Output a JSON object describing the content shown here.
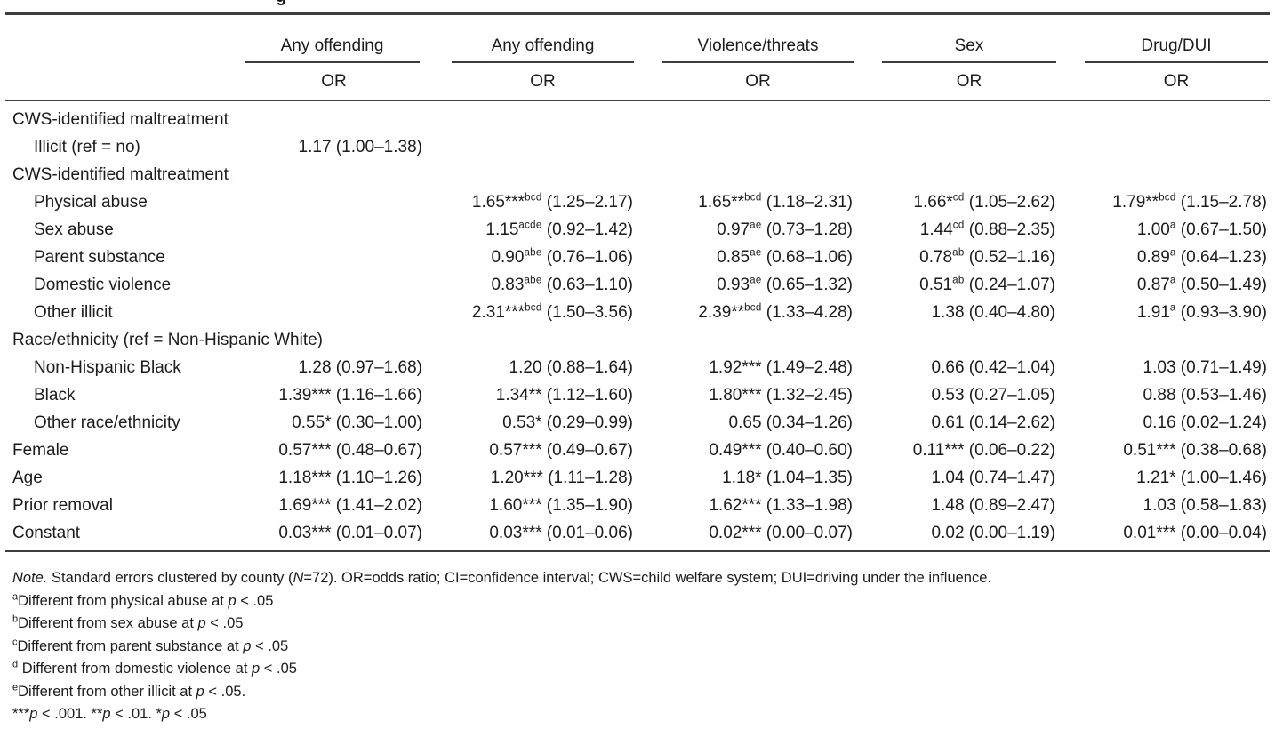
{
  "page": {
    "clipped_title_fragment": "g"
  },
  "colors": {
    "text": "#1c1c1c",
    "rule": "#3d3d3d",
    "background": "#ffffff"
  },
  "table": {
    "column_groups": [
      {
        "label": "Any offending",
        "sub": "OR"
      },
      {
        "label": "Any offending",
        "sub": "OR"
      },
      {
        "label": "Violence/threats",
        "sub": "OR"
      },
      {
        "label": "Sex",
        "sub": "OR"
      },
      {
        "label": "Drug/DUI",
        "sub": "OR"
      }
    ],
    "rows": [
      {
        "label": "CWS-identified maltreatment",
        "indent": 0,
        "cells": [
          null,
          null,
          null,
          null,
          null
        ]
      },
      {
        "label": "Illicit (ref = no)",
        "indent": 1,
        "cells": [
          {
            "or": "1.17",
            "stars": "",
            "sup": "",
            "ci": "(1.00–1.38)"
          },
          null,
          null,
          null,
          null
        ]
      },
      {
        "label": "CWS-identified maltreatment",
        "indent": 0,
        "cells": [
          null,
          null,
          null,
          null,
          null
        ]
      },
      {
        "label": "Physical abuse",
        "indent": 1,
        "cells": [
          null,
          {
            "or": "1.65",
            "stars": "***",
            "sup": "bcd",
            "ci": "(1.25–2.17)"
          },
          {
            "or": "1.65",
            "stars": "**",
            "sup": "bcd",
            "ci": "(1.18–2.31)"
          },
          {
            "or": "1.66",
            "stars": "*",
            "sup": "cd",
            "ci": "(1.05–2.62)"
          },
          {
            "or": "1.79",
            "stars": "**",
            "sup": "bcd",
            "ci": "(1.15–2.78)"
          }
        ]
      },
      {
        "label": "Sex abuse",
        "indent": 1,
        "cells": [
          null,
          {
            "or": "1.15",
            "stars": "",
            "sup": "acde",
            "ci": "(0.92–1.42)"
          },
          {
            "or": "0.97",
            "stars": "",
            "sup": "ae",
            "ci": "(0.73–1.28)"
          },
          {
            "or": "1.44",
            "stars": "",
            "sup": "cd",
            "ci": "(0.88–2.35)"
          },
          {
            "or": "1.00",
            "stars": "",
            "sup": "a",
            "ci": "(0.67–1.50)"
          }
        ]
      },
      {
        "label": "Parent substance",
        "indent": 1,
        "cells": [
          null,
          {
            "or": "0.90",
            "stars": "",
            "sup": "abe",
            "ci": "(0.76–1.06)"
          },
          {
            "or": "0.85",
            "stars": "",
            "sup": "ae",
            "ci": "(0.68–1.06)"
          },
          {
            "or": "0.78",
            "stars": "",
            "sup": "ab",
            "ci": "(0.52–1.16)"
          },
          {
            "or": "0.89",
            "stars": "",
            "sup": "a",
            "ci": "(0.64–1.23)"
          }
        ]
      },
      {
        "label": "Domestic violence",
        "indent": 1,
        "cells": [
          null,
          {
            "or": "0.83",
            "stars": "",
            "sup": "abe",
            "ci": "(0.63–1.10)"
          },
          {
            "or": "0.93",
            "stars": "",
            "sup": "ae",
            "ci": "(0.65–1.32)"
          },
          {
            "or": "0.51",
            "stars": "",
            "sup": "ab",
            "ci": "(0.24–1.07)"
          },
          {
            "or": "0.87",
            "stars": "",
            "sup": "a",
            "ci": "(0.50–1.49)"
          }
        ]
      },
      {
        "label": "Other illicit",
        "indent": 1,
        "cells": [
          null,
          {
            "or": "2.31",
            "stars": "***",
            "sup": "bcd",
            "ci": "(1.50–3.56)"
          },
          {
            "or": "2.39",
            "stars": "**",
            "sup": "bcd",
            "ci": "(1.33–4.28)"
          },
          {
            "or": "1.38",
            "stars": "",
            "sup": "",
            "ci": "(0.40–4.80)"
          },
          {
            "or": "1.91",
            "stars": "",
            "sup": "a",
            "ci": "(0.93–3.90)"
          }
        ]
      },
      {
        "label": "Race/ethnicity (ref = Non-Hispanic White)",
        "indent": 0,
        "cells": [
          null,
          null,
          null,
          null,
          null
        ]
      },
      {
        "label": "Non-Hispanic Black",
        "indent": 1,
        "cells": [
          {
            "or": "1.28",
            "stars": "",
            "sup": "",
            "ci": "(0.97–1.68)"
          },
          {
            "or": "1.20",
            "stars": "",
            "sup": "",
            "ci": "(0.88–1.64)"
          },
          {
            "or": "1.92",
            "stars": "***",
            "sup": "",
            "ci": "(1.49–2.48)"
          },
          {
            "or": "0.66",
            "stars": "",
            "sup": "",
            "ci": "(0.42–1.04)"
          },
          {
            "or": "1.03",
            "stars": "",
            "sup": "",
            "ci": "(0.71–1.49)"
          }
        ]
      },
      {
        "label": "Black",
        "indent": 1,
        "cells": [
          {
            "or": "1.39",
            "stars": "***",
            "sup": "",
            "ci": "(1.16–1.66)"
          },
          {
            "or": "1.34",
            "stars": "**",
            "sup": "",
            "ci": "(1.12–1.60)"
          },
          {
            "or": "1.80",
            "stars": "***",
            "sup": "",
            "ci": "(1.32–2.45)"
          },
          {
            "or": "0.53",
            "stars": "",
            "sup": "",
            "ci": "(0.27–1.05)"
          },
          {
            "or": "0.88",
            "stars": "",
            "sup": "",
            "ci": "(0.53–1.46)"
          }
        ]
      },
      {
        "label": "Other race/ethnicity",
        "indent": 1,
        "cells": [
          {
            "or": "0.55",
            "stars": "*",
            "sup": "",
            "ci": "(0.30–1.00)"
          },
          {
            "or": "0.53",
            "stars": "*",
            "sup": "",
            "ci": "(0.29–0.99)"
          },
          {
            "or": "0.65",
            "stars": "",
            "sup": "",
            "ci": "(0.34–1.26)"
          },
          {
            "or": "0.61",
            "stars": "",
            "sup": "",
            "ci": "(0.14–2.62)"
          },
          {
            "or": "0.16",
            "stars": "",
            "sup": "",
            "ci": "(0.02–1.24)"
          }
        ]
      },
      {
        "label": "Female",
        "indent": 0,
        "cells": [
          {
            "or": "0.57",
            "stars": "***",
            "sup": "",
            "ci": "(0.48–0.67)"
          },
          {
            "or": "0.57",
            "stars": "***",
            "sup": "",
            "ci": "(0.49–0.67)"
          },
          {
            "or": "0.49",
            "stars": "***",
            "sup": "",
            "ci": "(0.40–0.60)"
          },
          {
            "or": "0.11",
            "stars": "***",
            "sup": "",
            "ci": "(0.06–0.22)"
          },
          {
            "or": "0.51",
            "stars": "***",
            "sup": "",
            "ci": "(0.38–0.68)"
          }
        ]
      },
      {
        "label": "Age",
        "indent": 0,
        "cells": [
          {
            "or": "1.18",
            "stars": "***",
            "sup": "",
            "ci": "(1.10–1.26)"
          },
          {
            "or": "1.20",
            "stars": "***",
            "sup": "",
            "ci": "(1.11–1.28)"
          },
          {
            "or": "1.18",
            "stars": "*",
            "sup": "",
            "ci": "(1.04–1.35)"
          },
          {
            "or": "1.04",
            "stars": "",
            "sup": "",
            "ci": "(0.74–1.47)"
          },
          {
            "or": "1.21",
            "stars": "*",
            "sup": "",
            "ci": "(1.00–1.46)"
          }
        ]
      },
      {
        "label": "Prior removal",
        "indent": 0,
        "cells": [
          {
            "or": "1.69",
            "stars": "***",
            "sup": "",
            "ci": "(1.41–2.02)"
          },
          {
            "or": "1.60",
            "stars": "***",
            "sup": "",
            "ci": "(1.35–1.90)"
          },
          {
            "or": "1.62",
            "stars": "***",
            "sup": "",
            "ci": "(1.33–1.98)"
          },
          {
            "or": "1.48",
            "stars": "",
            "sup": "",
            "ci": "(0.89–2.47)"
          },
          {
            "or": "1.03",
            "stars": "",
            "sup": "",
            "ci": "(0.58–1.83)"
          }
        ]
      },
      {
        "label": "Constant",
        "indent": 0,
        "cells": [
          {
            "or": "0.03",
            "stars": "***",
            "sup": "",
            "ci": "(0.01–0.07)"
          },
          {
            "or": "0.03",
            "stars": "***",
            "sup": "",
            "ci": "(0.01–0.06)"
          },
          {
            "or": "0.02",
            "stars": "***",
            "sup": "",
            "ci": "(0.00–0.07)"
          },
          {
            "or": "0.02",
            "stars": "",
            "sup": "",
            "ci": "(0.00–1.19)"
          },
          {
            "or": "0.01",
            "stars": "***",
            "sup": "",
            "ci": "(0.00–0.04)"
          }
        ]
      }
    ]
  },
  "notes": {
    "note_segments": [
      {
        "t": "Note.",
        "i": true
      },
      {
        "t": " Standard errors clustered by county (",
        "i": false
      },
      {
        "t": "N",
        "i": true
      },
      {
        "t": "=72). OR=odds ratio; CI=confidence interval; CWS=child welfare system; DUI=driving under the influence.",
        "i": false
      }
    ],
    "footnotes": [
      {
        "marker": "a",
        "pre": "Different from physical abuse at ",
        "p": "p",
        "post": " < .05"
      },
      {
        "marker": "b",
        "pre": "Different from sex abuse at ",
        "p": "p",
        "post": " < .05"
      },
      {
        "marker": "c",
        "pre": "Different from parent substance at ",
        "p": "p",
        "post": " < .05"
      },
      {
        "marker": "d",
        "pre": " Different from domestic violence at ",
        "p": "p",
        "post": " < .05"
      },
      {
        "marker": "e",
        "pre": "Different from other illicit at ",
        "p": "p",
        "post": " < .05."
      }
    ],
    "significance_segments": [
      {
        "stars": "***",
        "p": "p",
        "rest": " < .001. "
      },
      {
        "stars": "**",
        "p": "p",
        "rest": " < .01. "
      },
      {
        "stars": "*",
        "p": "p",
        "rest": " < .05"
      }
    ]
  }
}
